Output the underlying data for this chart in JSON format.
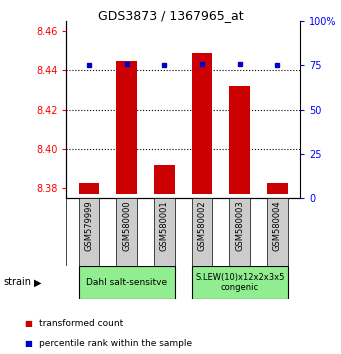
{
  "title": "GDS3873 / 1367965_at",
  "samples": [
    "GSM579999",
    "GSM580000",
    "GSM580001",
    "GSM580002",
    "GSM580003",
    "GSM580004"
  ],
  "bar_values": [
    8.383,
    8.445,
    8.392,
    8.449,
    8.432,
    8.383
  ],
  "bar_base": 8.377,
  "percentile_values": [
    75,
    76,
    75,
    76,
    76,
    75
  ],
  "ylim_left": [
    8.375,
    8.465
  ],
  "ylim_right": [
    0,
    100
  ],
  "yticks_left": [
    8.38,
    8.4,
    8.42,
    8.44,
    8.46
  ],
  "yticks_right": [
    0,
    25,
    50,
    75,
    100
  ],
  "bar_color": "#cc0000",
  "dot_color": "#0000cc",
  "group1_label": "Dahl salt-sensitve",
  "group2_label": "S.LEW(10)x12x2x3x5\ncongenic",
  "group1_indices": [
    0,
    1,
    2
  ],
  "group2_indices": [
    3,
    4,
    5
  ],
  "group_color": "#90ee90",
  "strain_label": "strain",
  "legend1": "transformed count",
  "legend2": "percentile rank within the sample",
  "bar_width": 0.55,
  "figsize": [
    3.41,
    3.54
  ],
  "dpi": 100
}
